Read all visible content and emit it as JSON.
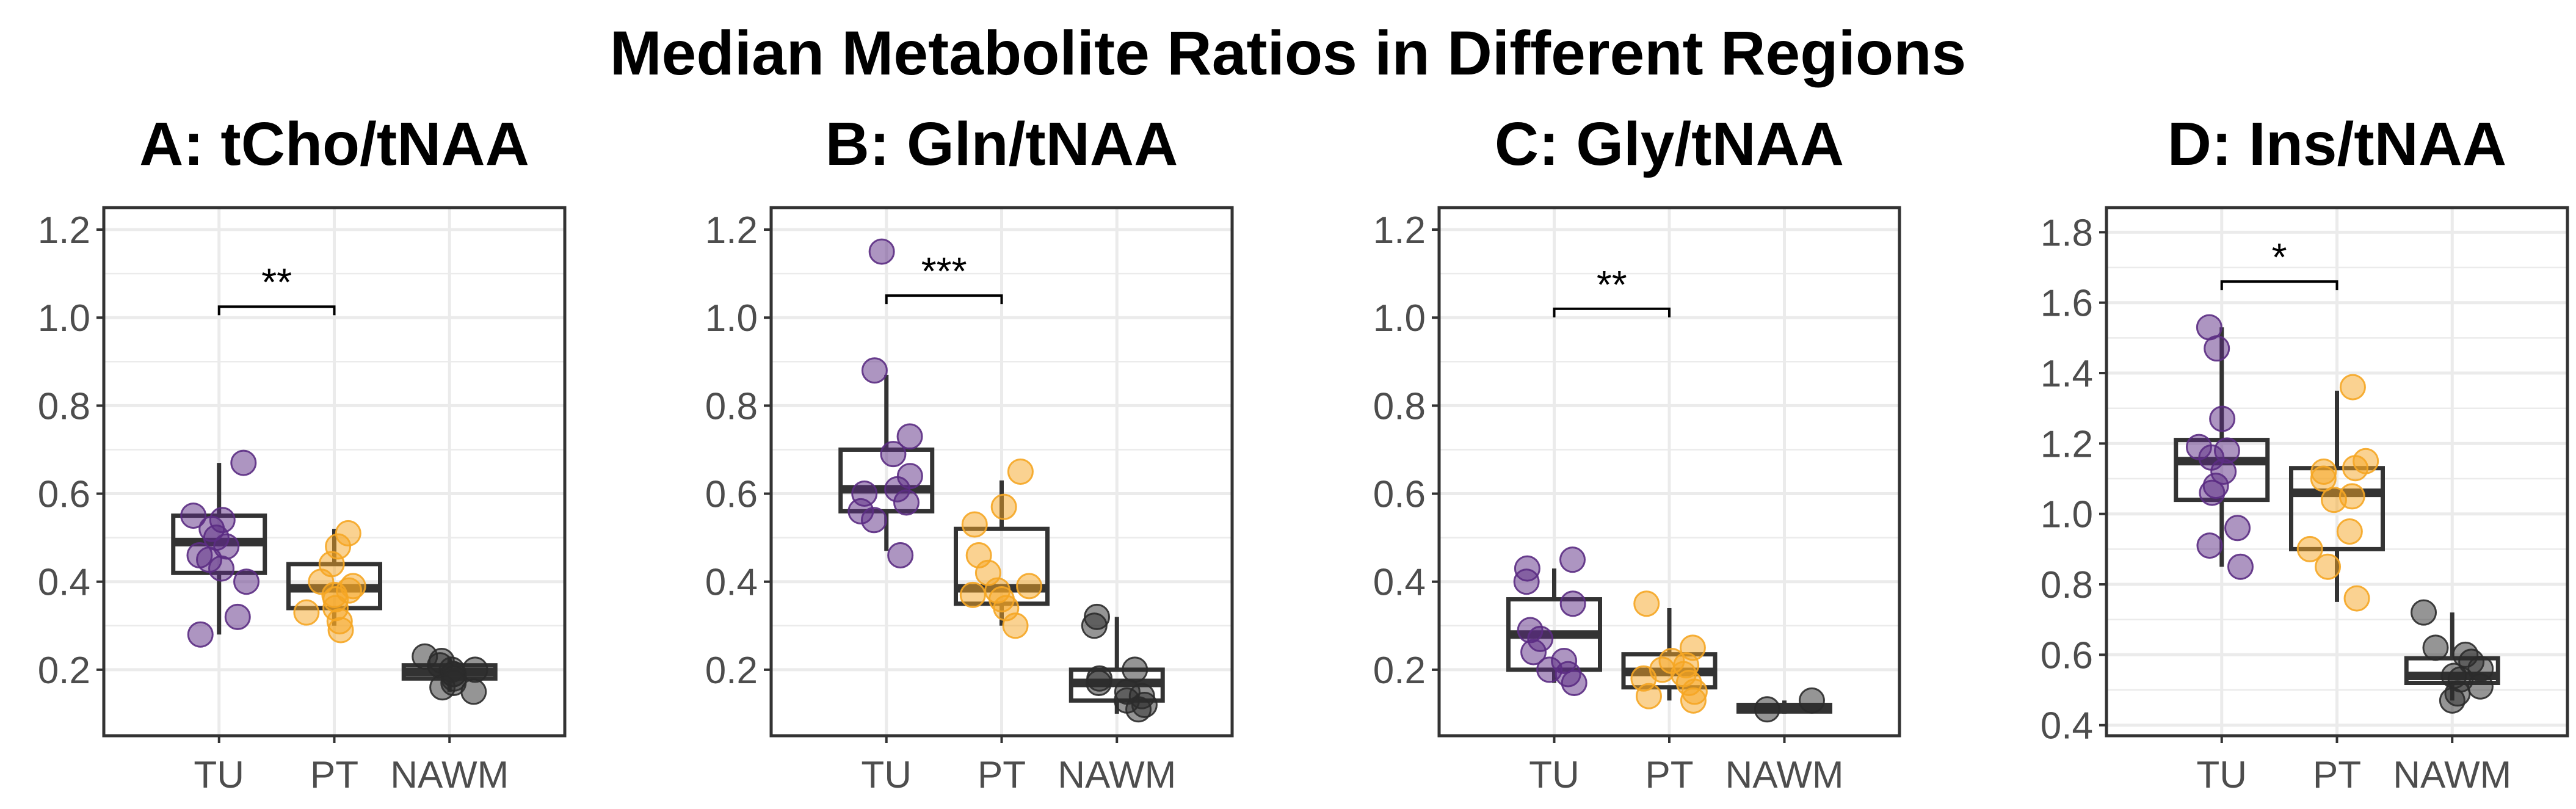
{
  "suptitle": "Median Metabolite Ratios in Different Regions",
  "colors": {
    "TU": "#5b2c83",
    "PT": "#f5a623",
    "NAWM": "#2b2b2b",
    "grid": "#ebebeb",
    "box": "#333333",
    "tick_text": "#4d4d4d"
  },
  "chart_data": [
    {
      "type": "box",
      "title": "A: tCho/tNAA",
      "categories": [
        "TU",
        "PT",
        "NAWM"
      ],
      "ylim": [
        0.05,
        1.25
      ],
      "yticks": [
        0.2,
        0.4,
        0.6,
        0.8,
        1.0,
        1.2
      ],
      "ytick_labels": [
        "0.2",
        "0.4",
        "0.6",
        "0.8",
        "1.0",
        "1.2"
      ],
      "boxes": [
        {
          "category": "TU",
          "q1": 0.42,
          "median": 0.49,
          "q3": 0.55,
          "whisker_low": 0.28,
          "whisker_high": 0.67
        },
        {
          "category": "PT",
          "q1": 0.34,
          "median": 0.385,
          "q3": 0.44,
          "whisker_low": 0.3,
          "whisker_high": 0.52
        },
        {
          "category": "NAWM",
          "q1": 0.18,
          "median": 0.195,
          "q3": 0.21,
          "whisker_low": 0.15,
          "whisker_high": 0.23
        }
      ],
      "points": {
        "TU": [
          0.67,
          0.55,
          0.54,
          0.52,
          0.5,
          0.48,
          0.46,
          0.45,
          0.43,
          0.4,
          0.32,
          0.28
        ],
        "PT": [
          0.51,
          0.48,
          0.44,
          0.4,
          0.39,
          0.38,
          0.37,
          0.36,
          0.34,
          0.33,
          0.31,
          0.29
        ],
        "NAWM": [
          0.23,
          0.22,
          0.21,
          0.2,
          0.2,
          0.19,
          0.19,
          0.18,
          0.17,
          0.16,
          0.15
        ]
      },
      "significance": {
        "from": "TU",
        "to": "PT",
        "label": "**",
        "y": 1.025
      }
    },
    {
      "type": "box",
      "title": "B: Gln/tNAA",
      "categories": [
        "TU",
        "PT",
        "NAWM"
      ],
      "ylim": [
        0.05,
        1.25
      ],
      "yticks": [
        0.2,
        0.4,
        0.6,
        0.8,
        1.0,
        1.2
      ],
      "ytick_labels": [
        "0.2",
        "0.4",
        "0.6",
        "0.8",
        "1.0",
        "1.2"
      ],
      "boxes": [
        {
          "category": "TU",
          "q1": 0.56,
          "median": 0.61,
          "q3": 0.7,
          "whisker_low": 0.47,
          "whisker_high": 0.87
        },
        {
          "category": "PT",
          "q1": 0.35,
          "median": 0.385,
          "q3": 0.52,
          "whisker_low": 0.3,
          "whisker_high": 0.63
        },
        {
          "category": "NAWM",
          "q1": 0.13,
          "median": 0.17,
          "q3": 0.2,
          "whisker_low": 0.1,
          "whisker_high": 0.32
        }
      ],
      "points": {
        "TU": [
          1.15,
          0.88,
          0.73,
          0.69,
          0.64,
          0.61,
          0.6,
          0.58,
          0.56,
          0.54,
          0.46
        ],
        "PT": [
          0.65,
          0.57,
          0.53,
          0.46,
          0.42,
          0.39,
          0.38,
          0.37,
          0.36,
          0.34,
          0.3
        ],
        "NAWM": [
          0.32,
          0.3,
          0.2,
          0.18,
          0.17,
          0.15,
          0.14,
          0.13,
          0.12,
          0.11
        ]
      },
      "significance": {
        "from": "TU",
        "to": "PT",
        "label": "***",
        "y": 1.05
      }
    },
    {
      "type": "box",
      "title": "C: Gly/tNAA",
      "categories": [
        "TU",
        "PT",
        "NAWM"
      ],
      "ylim": [
        0.05,
        1.25
      ],
      "yticks": [
        0.2,
        0.4,
        0.6,
        0.8,
        1.0,
        1.2
      ],
      "ytick_labels": [
        "0.2",
        "0.4",
        "0.6",
        "0.8",
        "1.0",
        "1.2"
      ],
      "boxes": [
        {
          "category": "TU",
          "q1": 0.2,
          "median": 0.28,
          "q3": 0.36,
          "whisker_low": 0.17,
          "whisker_high": 0.43
        },
        {
          "category": "PT",
          "q1": 0.16,
          "median": 0.195,
          "q3": 0.235,
          "whisker_low": 0.13,
          "whisker_high": 0.34
        },
        {
          "category": "NAWM",
          "q1": 0.105,
          "median": 0.115,
          "q3": 0.12,
          "whisker_low": 0.1,
          "whisker_high": 0.13
        }
      ],
      "points": {
        "TU": [
          0.45,
          0.43,
          0.4,
          0.35,
          0.29,
          0.27,
          0.24,
          0.22,
          0.2,
          0.19,
          0.17
        ],
        "PT": [
          0.35,
          0.25,
          0.22,
          0.21,
          0.2,
          0.19,
          0.18,
          0.17,
          0.15,
          0.14,
          0.13
        ],
        "NAWM": [
          0.13,
          0.11
        ]
      },
      "significance": {
        "from": "TU",
        "to": "PT",
        "label": "**",
        "y": 1.02
      }
    },
    {
      "type": "box",
      "title": "D: Ins/tNAA",
      "categories": [
        "TU",
        "PT",
        "NAWM"
      ],
      "ylim": [
        0.37,
        1.87
      ],
      "yticks": [
        0.4,
        0.6,
        0.8,
        1.0,
        1.2,
        1.4,
        1.6,
        1.8
      ],
      "ytick_labels": [
        "0.4",
        "0.6",
        "0.8",
        "1.0",
        "1.2",
        "1.4",
        "1.6",
        "1.8"
      ],
      "boxes": [
        {
          "category": "TU",
          "q1": 1.04,
          "median": 1.15,
          "q3": 1.21,
          "whisker_low": 0.85,
          "whisker_high": 1.53
        },
        {
          "category": "PT",
          "q1": 0.9,
          "median": 1.06,
          "q3": 1.13,
          "whisker_low": 0.75,
          "whisker_high": 1.35
        },
        {
          "category": "NAWM",
          "q1": 0.52,
          "median": 0.54,
          "q3": 0.59,
          "whisker_low": 0.47,
          "whisker_high": 0.72
        }
      ],
      "points": {
        "TU": [
          1.53,
          1.47,
          1.27,
          1.19,
          1.18,
          1.16,
          1.12,
          1.08,
          1.06,
          0.96,
          0.91,
          0.85
        ],
        "PT": [
          1.36,
          1.15,
          1.13,
          1.12,
          1.1,
          1.05,
          1.04,
          0.95,
          0.9,
          0.85,
          0.76
        ],
        "NAWM": [
          0.72,
          0.62,
          0.6,
          0.58,
          0.56,
          0.54,
          0.53,
          0.51,
          0.49,
          0.47
        ]
      },
      "significance": {
        "from": "TU",
        "to": "PT",
        "label": "*",
        "y": 1.66
      }
    }
  ]
}
